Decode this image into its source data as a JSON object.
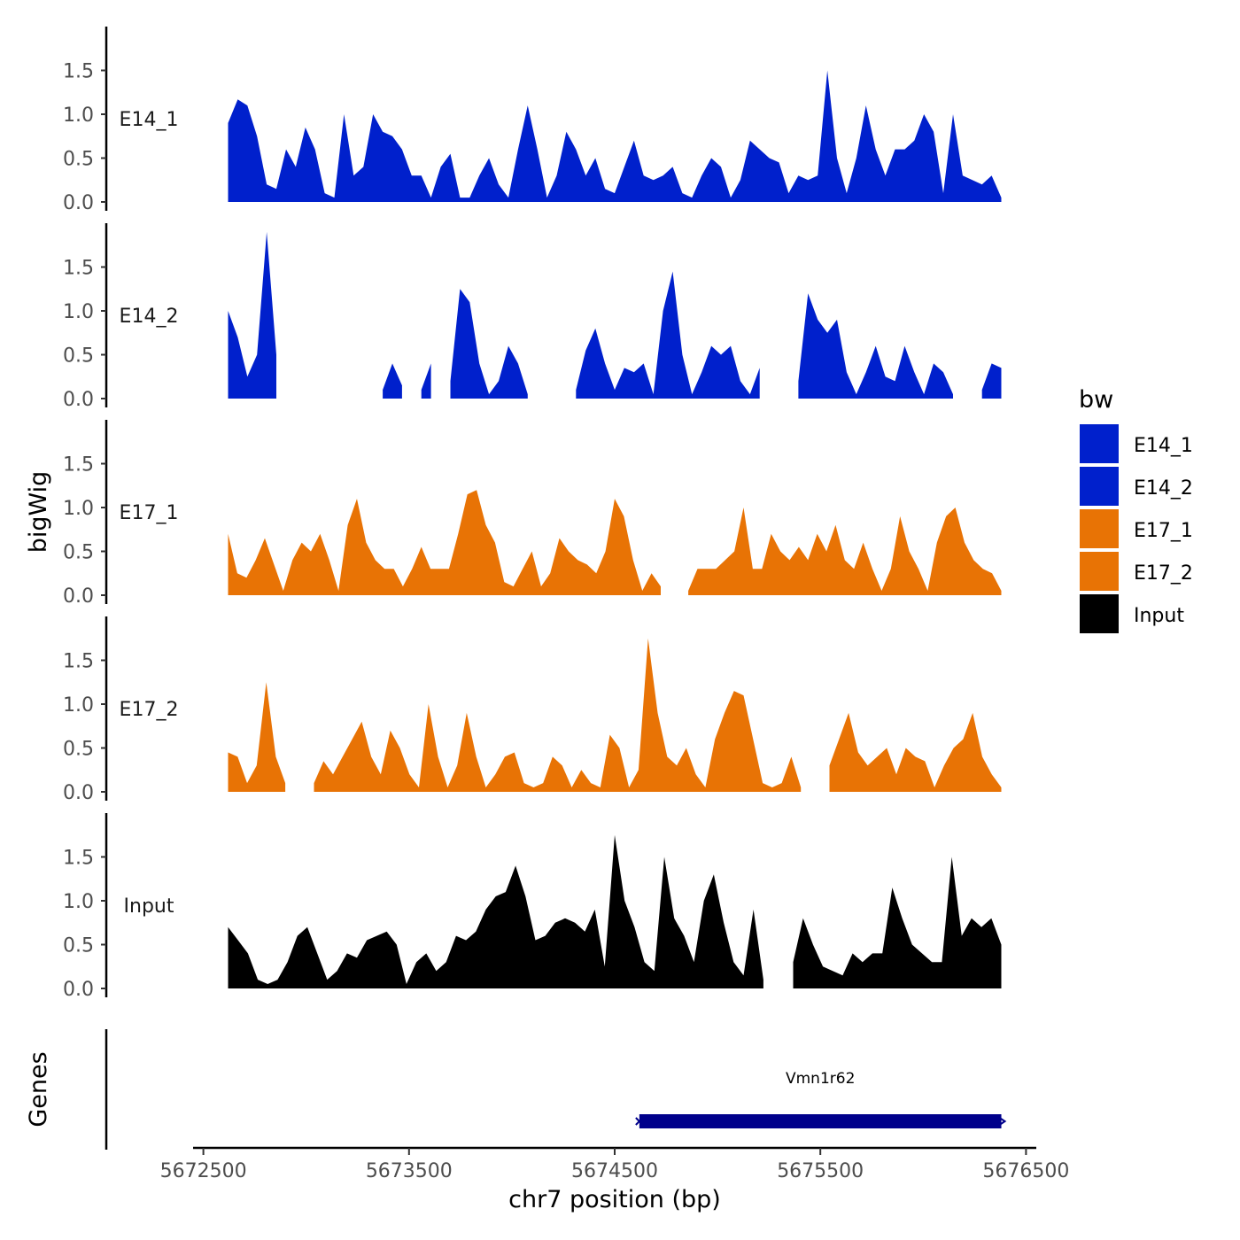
{
  "chart_data": {
    "type": "area",
    "x_range": [
      5672620,
      5676380
    ],
    "xlim": [
      5672450,
      5676550
    ],
    "xlabel": "chr7 position (bp)",
    "x_ticks": [
      5672500,
      5673500,
      5674500,
      5675500,
      5676500
    ],
    "x_tick_labels": [
      "5672500",
      "5673500",
      "5674500",
      "5675500",
      "5676500"
    ],
    "ylabel": "bigWig",
    "ylim": [
      -0.02,
      2.0
    ],
    "y_ticks": [
      0,
      0.5,
      1,
      1.5
    ],
    "y_tick_labels": [
      "0.0",
      "0.5",
      "1.0",
      "1.5"
    ],
    "legend": {
      "title": "bw",
      "entries": [
        {
          "label": "E14_1",
          "color": "#0020cc"
        },
        {
          "label": "E14_2",
          "color": "#0020cc"
        },
        {
          "label": "E17_1",
          "color": "#e87305"
        },
        {
          "label": "E17_2",
          "color": "#e87305"
        },
        {
          "label": "Input",
          "color": "#000000"
        }
      ]
    },
    "series": [
      {
        "name": "E14_1",
        "color": "#0020cc",
        "values": [
          0.9,
          1.17,
          1.1,
          0.75,
          0.2,
          0.15,
          0.6,
          0.4,
          0.85,
          0.6,
          0.1,
          0.05,
          1.0,
          0.3,
          0.4,
          1.0,
          0.8,
          0.75,
          0.6,
          0.3,
          0.3,
          0.05,
          0.4,
          0.55,
          0.05,
          0.05,
          0.3,
          0.5,
          0.2,
          0.05,
          0.6,
          1.1,
          0.6,
          0.05,
          0.3,
          0.8,
          0.6,
          0.3,
          0.5,
          0.15,
          0.1,
          0.4,
          0.7,
          0.3,
          0.25,
          0.3,
          0.4,
          0.1,
          0.05,
          0.3,
          0.5,
          0.4,
          0.05,
          0.25,
          0.7,
          0.6,
          0.5,
          0.45,
          0.1,
          0.3,
          0.25,
          0.3,
          1.5,
          0.5,
          0.1,
          0.5,
          1.1,
          0.6,
          0.3,
          0.6,
          0.6,
          0.7,
          1.0,
          0.8,
          0.1,
          1.0,
          0.3,
          0.25,
          0.2,
          0.3,
          0.05
        ]
      },
      {
        "name": "E14_2",
        "color": "#0020cc",
        "values": [
          1.0,
          0.7,
          0.25,
          0.5,
          1.9,
          0.5,
          null,
          null,
          null,
          null,
          null,
          null,
          null,
          null,
          null,
          null,
          0.1,
          0.4,
          0.15,
          null,
          0.1,
          0.4,
          null,
          0.2,
          1.25,
          1.1,
          0.4,
          0.05,
          0.2,
          0.6,
          0.4,
          0.05,
          null,
          null,
          null,
          null,
          0.1,
          0.55,
          0.8,
          0.4,
          0.1,
          0.35,
          0.3,
          0.4,
          0.05,
          1.0,
          1.45,
          0.5,
          0.05,
          0.3,
          0.6,
          0.5,
          0.6,
          0.2,
          0.05,
          0.35,
          null,
          null,
          null,
          0.2,
          1.2,
          0.9,
          0.75,
          0.9,
          0.3,
          0.05,
          0.3,
          0.6,
          0.25,
          0.2,
          0.6,
          0.3,
          0.05,
          0.4,
          0.3,
          0.05,
          null,
          null,
          0.1,
          0.4,
          0.35
        ]
      },
      {
        "name": "E17_1",
        "color": "#e87305",
        "values": [
          0.7,
          0.25,
          0.2,
          0.4,
          0.65,
          0.35,
          0.05,
          0.4,
          0.6,
          0.5,
          0.7,
          0.4,
          0.05,
          0.8,
          1.1,
          0.6,
          0.4,
          0.3,
          0.3,
          0.1,
          0.3,
          0.55,
          0.3,
          0.3,
          0.3,
          0.7,
          1.15,
          1.2,
          0.8,
          0.6,
          0.15,
          0.1,
          0.3,
          0.5,
          0.1,
          0.25,
          0.65,
          0.5,
          0.4,
          0.35,
          0.25,
          0.5,
          1.1,
          0.9,
          0.4,
          0.05,
          0.25,
          0.1,
          null,
          null,
          0.05,
          0.3,
          0.3,
          0.3,
          0.4,
          0.5,
          1.0,
          0.3,
          0.3,
          0.7,
          0.5,
          0.4,
          0.55,
          0.4,
          0.7,
          0.5,
          0.8,
          0.4,
          0.3,
          0.6,
          0.3,
          0.05,
          0.3,
          0.9,
          0.5,
          0.3,
          0.05,
          0.6,
          0.9,
          1.0,
          0.6,
          0.4,
          0.3,
          0.25,
          0.05
        ]
      },
      {
        "name": "E17_2",
        "color": "#e87305",
        "values": [
          0.45,
          0.4,
          0.1,
          0.3,
          1.25,
          0.4,
          0.1,
          null,
          null,
          0.1,
          0.35,
          0.2,
          0.4,
          0.6,
          0.8,
          0.4,
          0.2,
          0.7,
          0.5,
          0.2,
          0.05,
          1.0,
          0.4,
          0.05,
          0.3,
          0.9,
          0.4,
          0.05,
          0.2,
          0.4,
          0.45,
          0.1,
          0.05,
          0.1,
          0.4,
          0.3,
          0.05,
          0.25,
          0.1,
          0.05,
          0.65,
          0.5,
          0.05,
          0.25,
          1.75,
          0.9,
          0.4,
          0.3,
          0.5,
          0.2,
          0.05,
          0.6,
          0.9,
          1.15,
          1.1,
          0.6,
          0.1,
          0.05,
          0.1,
          0.4,
          0.05,
          null,
          null,
          0.3,
          0.6,
          0.9,
          0.45,
          0.3,
          0.4,
          0.5,
          0.2,
          0.5,
          0.4,
          0.35,
          0.05,
          0.3,
          0.5,
          0.6,
          0.9,
          0.4,
          0.2,
          0.05
        ]
      },
      {
        "name": "Input",
        "color": "#000000",
        "values": [
          0.7,
          0.55,
          0.4,
          0.1,
          0.05,
          0.1,
          0.3,
          0.6,
          0.7,
          0.4,
          0.1,
          0.2,
          0.4,
          0.35,
          0.55,
          0.6,
          0.65,
          0.5,
          0.05,
          0.3,
          0.4,
          0.2,
          0.3,
          0.6,
          0.55,
          0.65,
          0.9,
          1.05,
          1.1,
          1.4,
          1.05,
          0.55,
          0.6,
          0.75,
          0.8,
          0.75,
          0.65,
          0.9,
          0.25,
          1.75,
          1.0,
          0.7,
          0.3,
          0.2,
          1.5,
          0.8,
          0.6,
          0.3,
          1.0,
          1.3,
          0.75,
          0.3,
          0.15,
          0.9,
          0.1,
          null,
          null,
          0.3,
          0.8,
          0.5,
          0.25,
          0.2,
          0.15,
          0.4,
          0.3,
          0.4,
          0.4,
          1.15,
          0.8,
          0.5,
          0.4,
          0.3,
          0.3,
          1.5,
          0.6,
          0.8,
          0.7,
          0.8,
          0.5
        ]
      }
    ],
    "genes_track": {
      "label": "Genes",
      "genes": [
        {
          "name": "Vmn1r62",
          "start": 5674620,
          "end": 5676380,
          "strand": "+",
          "color": "#00008b"
        }
      ]
    }
  }
}
